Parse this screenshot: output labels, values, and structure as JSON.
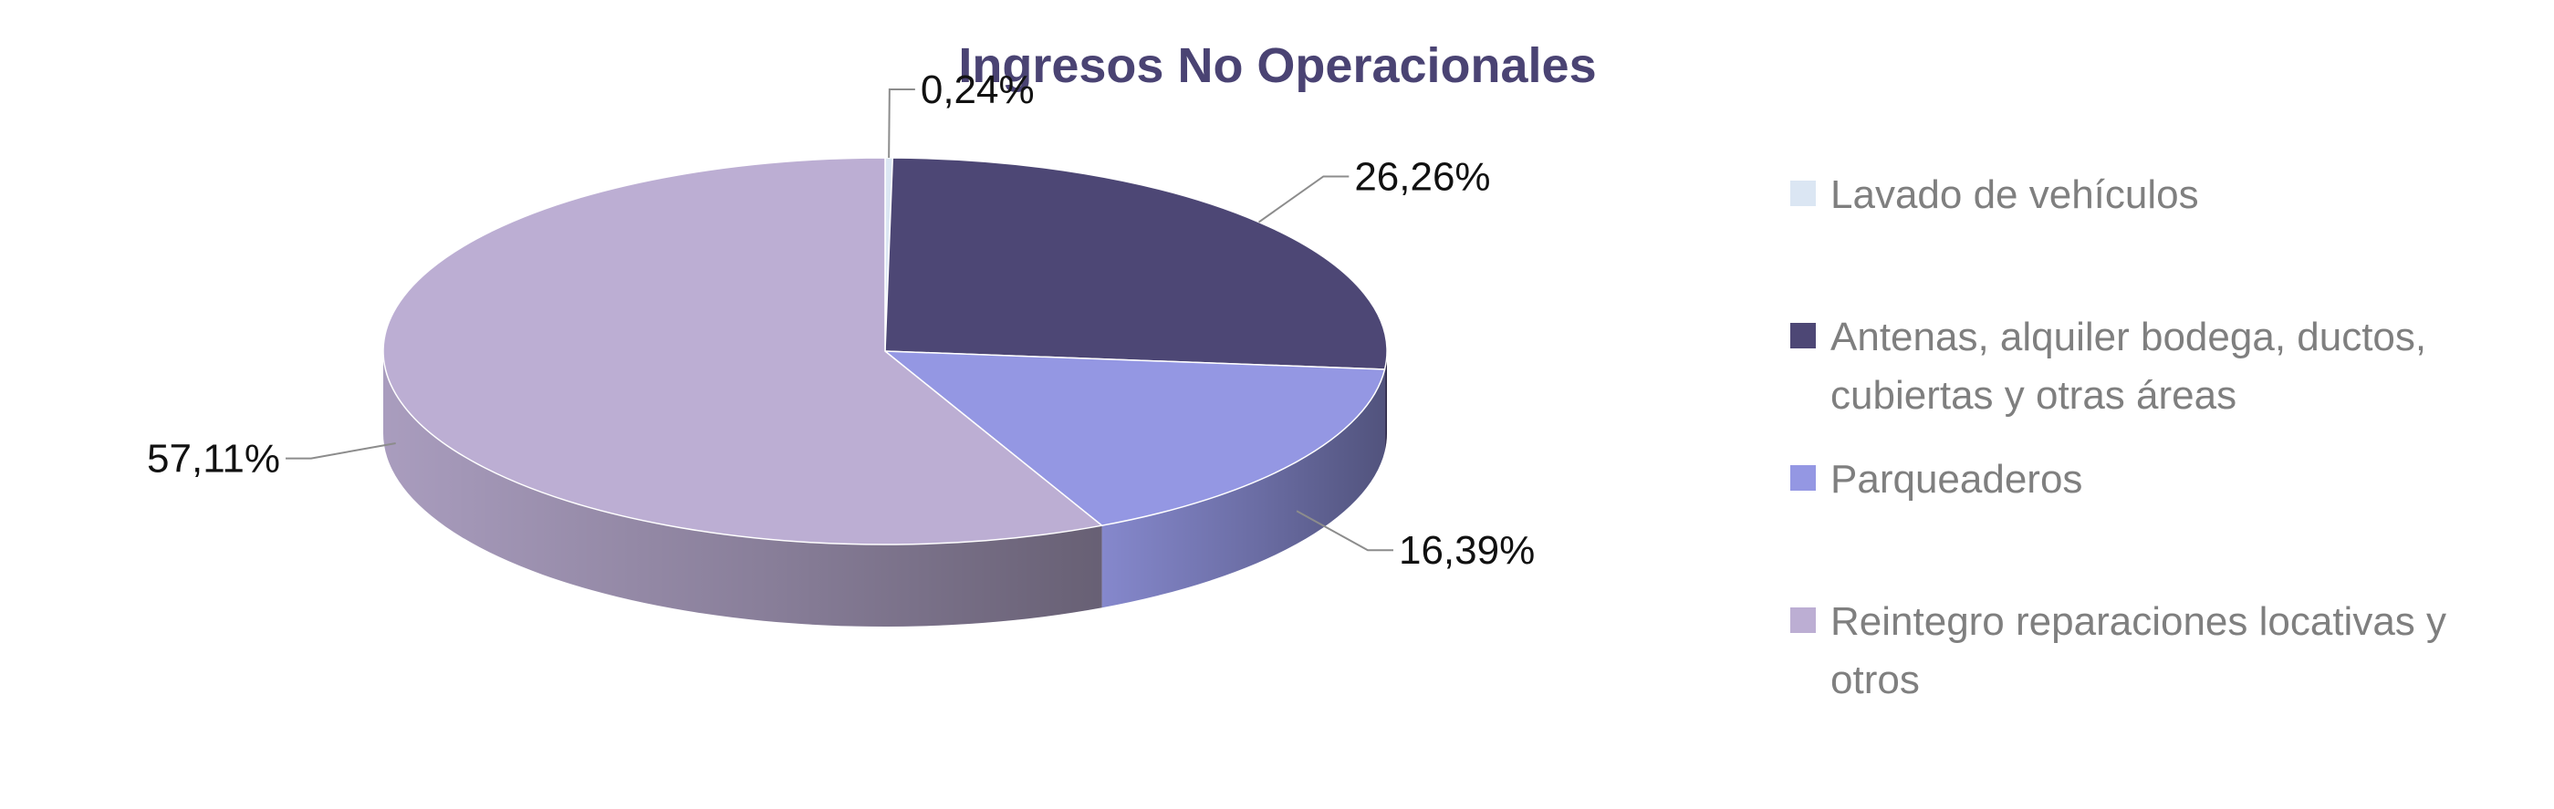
{
  "chart_data": {
    "type": "pie",
    "title": "Ingresos No Operacionales",
    "title_color": "#4a4373",
    "three_d": true,
    "legend_position": "right",
    "slices": [
      {
        "name": "Lavado de vehículos",
        "legend_lines": [
          "Lavado de vehículos"
        ],
        "value": 0.24,
        "label": "0,24%",
        "color": "#dbe6f3"
      },
      {
        "name": "Antenas, alquiler bodega, ductos, cubiertas y otras áreas",
        "legend_lines": [
          "Antenas, alquiler bodega, ductos,",
          "cubiertas y otras áreas"
        ],
        "value": 26.26,
        "label": "26,26%",
        "color": "#4d4775"
      },
      {
        "name": "Parqueaderos",
        "legend_lines": [
          "Parqueaderos"
        ],
        "value": 16.39,
        "label": "16,39%",
        "color": "#9497e3"
      },
      {
        "name": "Reintegro reparaciones locativas y otros",
        "legend_lines": [
          "Reintegro reparaciones locativas y",
          "otros"
        ],
        "value": 57.11,
        "label": "57,11%",
        "color": "#bcaed3"
      }
    ]
  }
}
